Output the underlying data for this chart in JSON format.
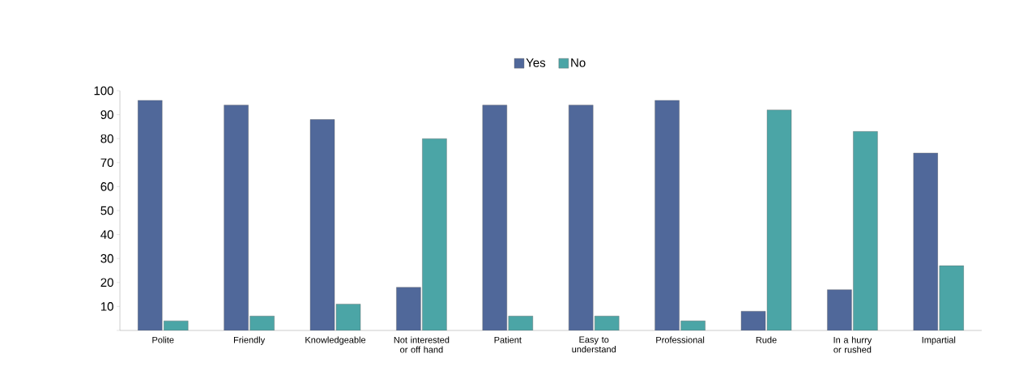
{
  "chart_data": {
    "type": "bar",
    "categories": [
      "Polite",
      "Friendly",
      "Knowledgeable",
      "Not interested or off hand",
      "Patient",
      "Easy to understand",
      "Professional",
      "Rude",
      "In a hurry or rushed",
      "Impartial"
    ],
    "series": [
      {
        "name": "Yes",
        "color": "#50689a",
        "values": [
          96,
          94,
          88,
          18,
          94,
          94,
          96,
          8,
          17,
          74
        ]
      },
      {
        "name": "No",
        "color": "#4ba5a6",
        "values": [
          4,
          6,
          11,
          80,
          6,
          6,
          4,
          92,
          83,
          27
        ]
      }
    ],
    "ylim": [
      0,
      100
    ],
    "yticks": [
      {
        "value": 0,
        "label": null
      },
      10,
      20,
      30,
      40,
      50,
      60,
      70,
      80,
      90,
      100
    ],
    "legend": "top",
    "grid": false
  }
}
